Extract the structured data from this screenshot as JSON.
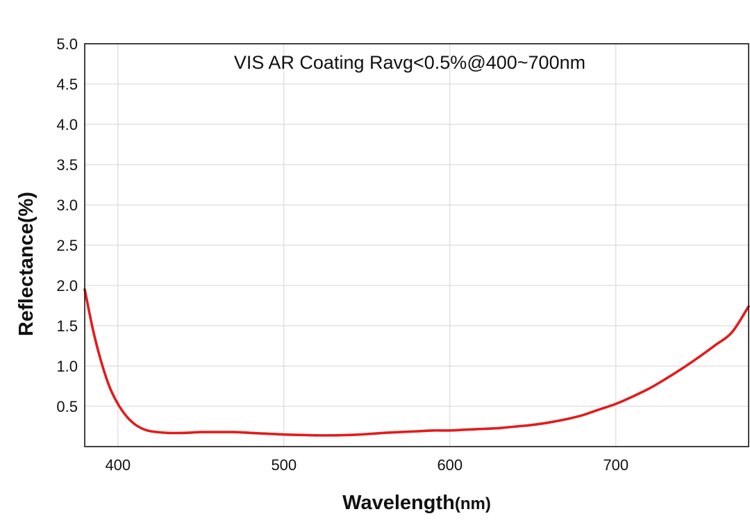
{
  "chart_data": {
    "type": "line",
    "title": "VIS AR Coating Ravg<0.5%@400~700nm",
    "xlabel_main": "Wavelength",
    "xlabel_unit": "(nm)",
    "ylabel": "Reflectance(%)",
    "xlim": [
      380,
      780
    ],
    "ylim": [
      0,
      5.0
    ],
    "x_ticks": [
      400,
      500,
      600,
      700
    ],
    "y_ticks": [
      0.5,
      1.0,
      1.5,
      2.0,
      2.5,
      3.0,
      3.5,
      4.0,
      4.5,
      5.0
    ],
    "y_tick_labels": [
      "0.5",
      "1.0",
      "1.5",
      "2.0",
      "2.5",
      "3.0",
      "3.5",
      "4.0",
      "4.5",
      "5.0"
    ],
    "grid": true,
    "series": [
      {
        "color": "#e31b1b",
        "x": [
          380,
          385,
          390,
          395,
          400,
          405,
          410,
          415,
          420,
          430,
          440,
          450,
          460,
          470,
          480,
          490,
          500,
          510,
          520,
          530,
          540,
          550,
          560,
          570,
          580,
          590,
          600,
          610,
          620,
          630,
          640,
          650,
          660,
          670,
          680,
          690,
          700,
          710,
          720,
          730,
          740,
          750,
          760,
          770,
          780
        ],
        "y": [
          1.95,
          1.45,
          1.05,
          0.74,
          0.53,
          0.38,
          0.28,
          0.22,
          0.19,
          0.17,
          0.17,
          0.18,
          0.18,
          0.18,
          0.17,
          0.16,
          0.15,
          0.145,
          0.14,
          0.14,
          0.145,
          0.155,
          0.17,
          0.18,
          0.19,
          0.2,
          0.2,
          0.21,
          0.22,
          0.23,
          0.25,
          0.27,
          0.3,
          0.34,
          0.39,
          0.46,
          0.53,
          0.62,
          0.72,
          0.84,
          0.97,
          1.11,
          1.26,
          1.42,
          1.74
        ]
      }
    ]
  }
}
